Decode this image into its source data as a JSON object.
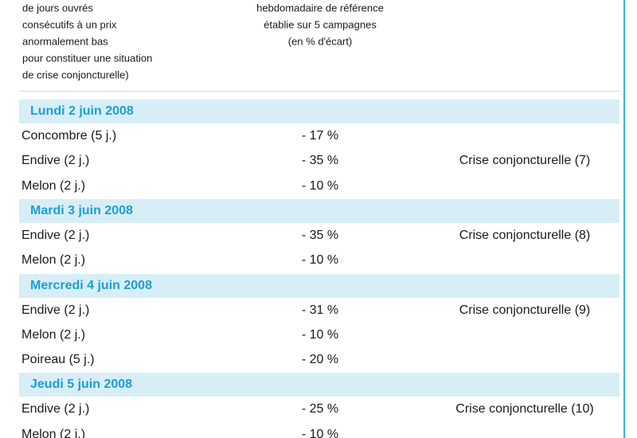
{
  "header": {
    "col1": [
      "de jours ouvrés",
      "consécutifs à un prix",
      "anormalement bas",
      "pour constituer une situation",
      "de crise conjoncturelle)"
    ],
    "col2": [
      "hebdomadaire de référence",
      "établie sur 5 campagnes",
      "(en % d'écart)"
    ]
  },
  "sections": [
    {
      "date": "Lundi 2 juin 2008",
      "rows": [
        {
          "product": "Concombre (5 j.)",
          "value": "- 17 %"
        },
        {
          "product": "Endive (2 j.)",
          "value": "- 35 %",
          "status": "Crise conjoncturelle (7)"
        },
        {
          "product": "Melon (2 j.)",
          "value": "- 10 %"
        }
      ]
    },
    {
      "date": "Mardi 3 juin 2008",
      "rows": [
        {
          "product": "Endive (2 j.)",
          "value": "- 35 %",
          "status": "Crise conjoncturelle (8)"
        },
        {
          "product": "Melon (2 j.)",
          "value": "- 10 %"
        }
      ]
    },
    {
      "date": "Mercredi 4 juin 2008",
      "rows": [
        {
          "product": "Endive (2 j.)",
          "value": "- 31 %",
          "status": "Crise conjoncturelle (9)"
        },
        {
          "product": "Melon (2 j.)",
          "value": "- 10 %"
        },
        {
          "product": "Poireau (5 j.)",
          "value": "- 20 %"
        }
      ]
    },
    {
      "date": "Jeudi 5 juin 2008",
      "rows": [
        {
          "product": "Endive (2 j.)",
          "value": "- 25 %",
          "status": "Crise conjoncturelle (10)"
        },
        {
          "product": "Melon (2 j.)",
          "value": "- 10 %"
        }
      ]
    }
  ]
}
